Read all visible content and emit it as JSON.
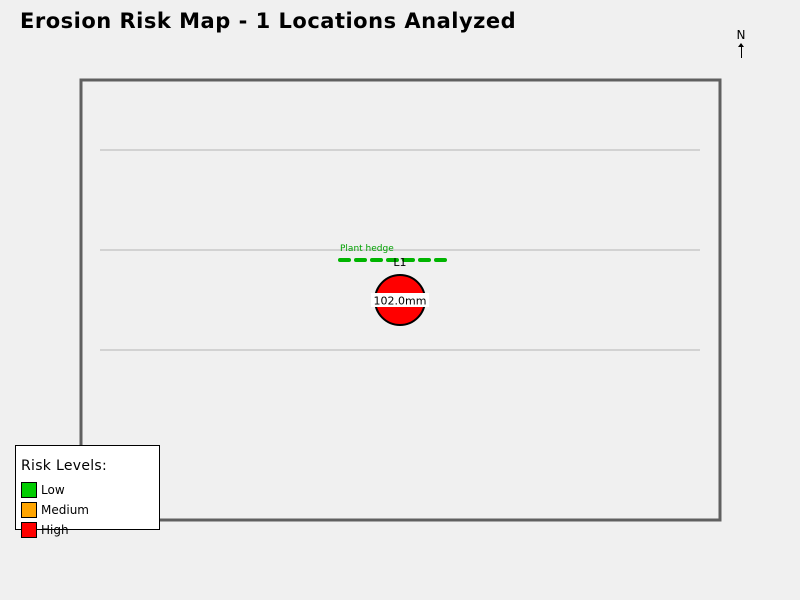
{
  "title": "Erosion Risk Map - 1 Locations Analyzed",
  "compass": {
    "label": "N",
    "icon": "north-arrow-icon"
  },
  "legend": {
    "title": "Risk Levels:",
    "items": [
      {
        "label": "Low",
        "color": "#00cc00"
      },
      {
        "label": "Medium",
        "color": "#ffa500"
      },
      {
        "label": "High",
        "color": "#ff0000"
      }
    ]
  },
  "locations": [
    {
      "id": "L1",
      "rainfall": "102.0mm",
      "risk": "High",
      "recommendation": "Plant hedge"
    }
  ],
  "colors": {
    "background": "#f0f0f0",
    "field_border": "#606060",
    "contour": "#b4b4b4",
    "high_risk": "#ff0000",
    "hedge": "#00b400"
  }
}
